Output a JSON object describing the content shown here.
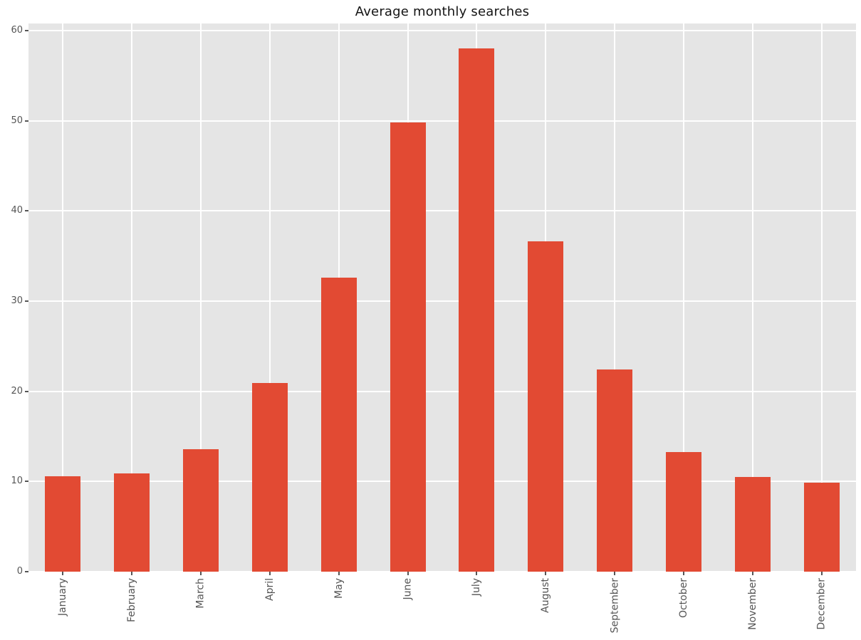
{
  "chart_data": {
    "type": "bar",
    "title": "Average monthly searches",
    "categories": [
      "January",
      "February",
      "March",
      "April",
      "May",
      "June",
      "July",
      "August",
      "September",
      "October",
      "November",
      "December"
    ],
    "values": [
      10.6,
      10.9,
      13.6,
      20.9,
      32.6,
      49.8,
      58.0,
      36.6,
      22.4,
      13.3,
      10.5,
      9.9
    ],
    "xlabel": "",
    "ylabel": "",
    "ylim": [
      0,
      60.8
    ],
    "yticks": [
      0,
      10,
      20,
      30,
      40,
      50,
      60
    ],
    "grid": true,
    "legend": "none",
    "x_tick_rotation": "vertical",
    "colors": {
      "bar": "#e24a33",
      "plot_background": "#e5e5e5",
      "gridline": "#ffffff",
      "tick_label": "#555555",
      "tick_mark": "#555555",
      "title": "#141414",
      "page_background": "#ffffff"
    }
  }
}
